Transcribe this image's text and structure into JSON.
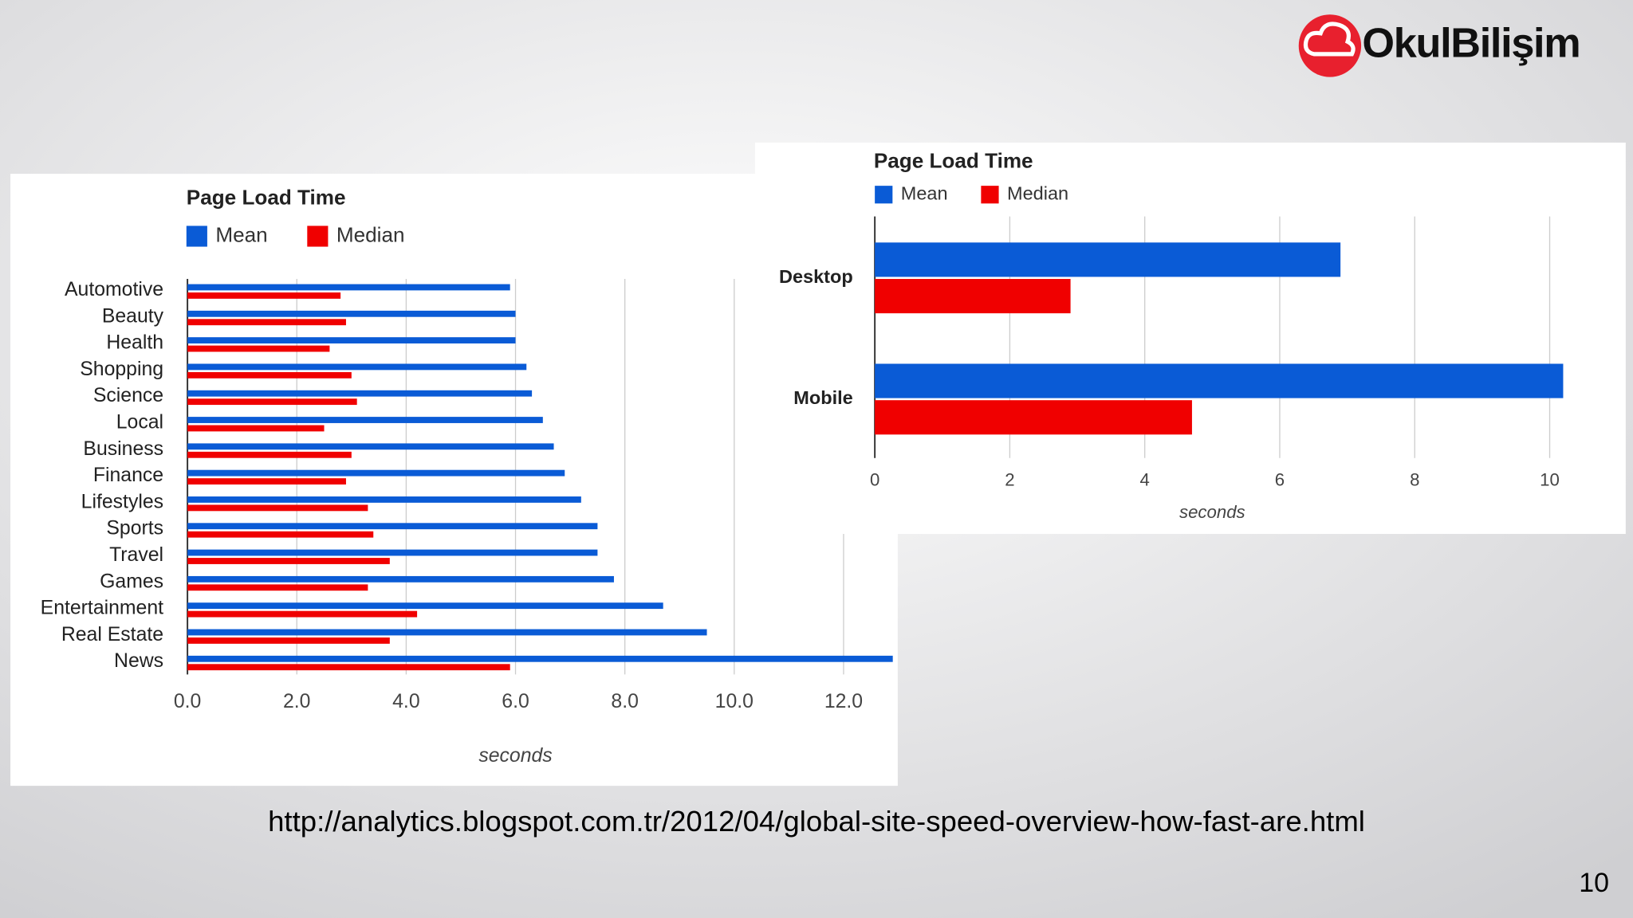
{
  "logo": "OkulBilişim",
  "source_url": "http://analytics.blogspot.com.tr/2012/04/global-site-speed-overview-how-fast-are.html",
  "page_number": "10",
  "chart_data": [
    {
      "type": "hbar",
      "title": "Page Load Time",
      "x_label": "seconds",
      "categories": [
        "Automotive",
        "Beauty",
        "Health",
        "Shopping",
        "Science",
        "Local",
        "Business",
        "Finance",
        "Lifestyles",
        "Sports",
        "Travel",
        "Games",
        "Entertainment",
        "Real Estate",
        "News"
      ],
      "series": [
        {
          "name": "Mean",
          "color": "#0a5bd6",
          "values": [
            5.9,
            6.0,
            6.0,
            6.2,
            6.3,
            6.5,
            6.7,
            6.9,
            7.2,
            7.5,
            7.5,
            7.8,
            8.7,
            9.5,
            12.9
          ]
        },
        {
          "name": "Median",
          "color": "#f00000",
          "values": [
            2.8,
            2.9,
            2.6,
            3.0,
            3.1,
            2.5,
            3.0,
            2.9,
            3.3,
            3.4,
            3.7,
            3.3,
            4.2,
            3.7,
            5.9
          ]
        }
      ],
      "xlim": [
        0,
        13
      ],
      "xticks": [
        {
          "value": 0,
          "label": "0.0"
        },
        {
          "value": 2,
          "label": "2.0"
        },
        {
          "value": 4,
          "label": "4.0"
        },
        {
          "value": 6,
          "label": "6.0"
        },
        {
          "value": 8,
          "label": "8.0"
        },
        {
          "value": 10,
          "label": "10.0"
        },
        {
          "value": 12,
          "label": "12.0"
        }
      ],
      "grid": true,
      "legend": "top"
    },
    {
      "type": "hbar",
      "title": "Page Load Time",
      "x_label": "seconds",
      "categories": [
        "Desktop",
        "Mobile"
      ],
      "series": [
        {
          "name": "Mean",
          "color": "#0a5bd6",
          "values": [
            6.9,
            10.2
          ]
        },
        {
          "name": "Median",
          "color": "#f00000",
          "values": [
            2.9,
            4.7
          ]
        }
      ],
      "xlim": [
        0,
        10.5
      ],
      "xticks": [
        0,
        2,
        4,
        6,
        8,
        10
      ],
      "grid": true,
      "legend": "top"
    }
  ]
}
